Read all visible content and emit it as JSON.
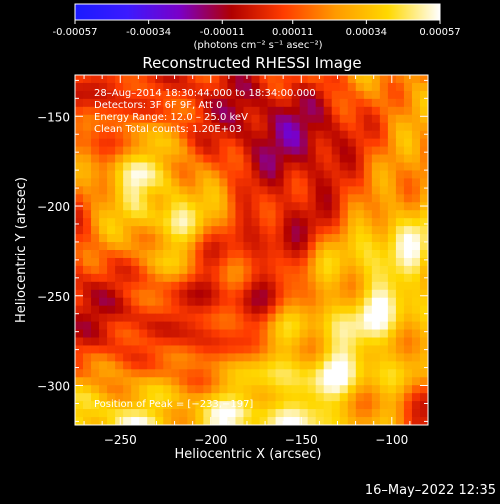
{
  "chart_data": {
    "type": "heatmap",
    "title": "Reconstructed RHESSI Image",
    "xlabel": "Heliocentric X (arcsec)",
    "ylabel": "Heliocentric Y (arcsec)",
    "xlim": [
      -275,
      -80
    ],
    "ylim": [
      -322,
      -127
    ],
    "xticks": [
      -250,
      -200,
      -150,
      -100
    ],
    "xtick_labels": [
      "−250",
      "−200",
      "−150",
      "−100"
    ],
    "yticks": [
      -150,
      -200,
      -250,
      -300
    ],
    "ytick_labels": [
      "−150",
      "−200",
      "−250",
      "−300"
    ],
    "colorbar": {
      "ticks": [
        -0.00057,
        -0.00034,
        -0.00011,
        0.00011,
        0.00034,
        0.00057
      ],
      "tick_labels": [
        "-0.00057",
        "-0.00034",
        "-0.00011",
        "0.00011",
        "0.00034",
        "0.00057"
      ],
      "vmin": -0.00057,
      "vmax": 0.00057,
      "colors": [
        "#1a1aff",
        "#3b1aff",
        "#7a00c8",
        "#b00000",
        "#ff3c00",
        "#ff9a00",
        "#ffd800",
        "#ffffff"
      ],
      "unit_label": "(photons cm⁻² s⁻¹ asec⁻²)"
    },
    "annotations": [
      "28–Aug–2014 18:30:44.000 to 18:34:00.000",
      "Detectors: 3F 6F 9F, Att 0",
      "Energy Range: 12.0 – 25.0 keV",
      "Clean     Total counts: 1.20E+03"
    ],
    "peak_label": "Position of Peak = [−233,−197]",
    "peak": [
      -233,
      -197
    ],
    "timestamp": "16–May–2022 12:35"
  }
}
